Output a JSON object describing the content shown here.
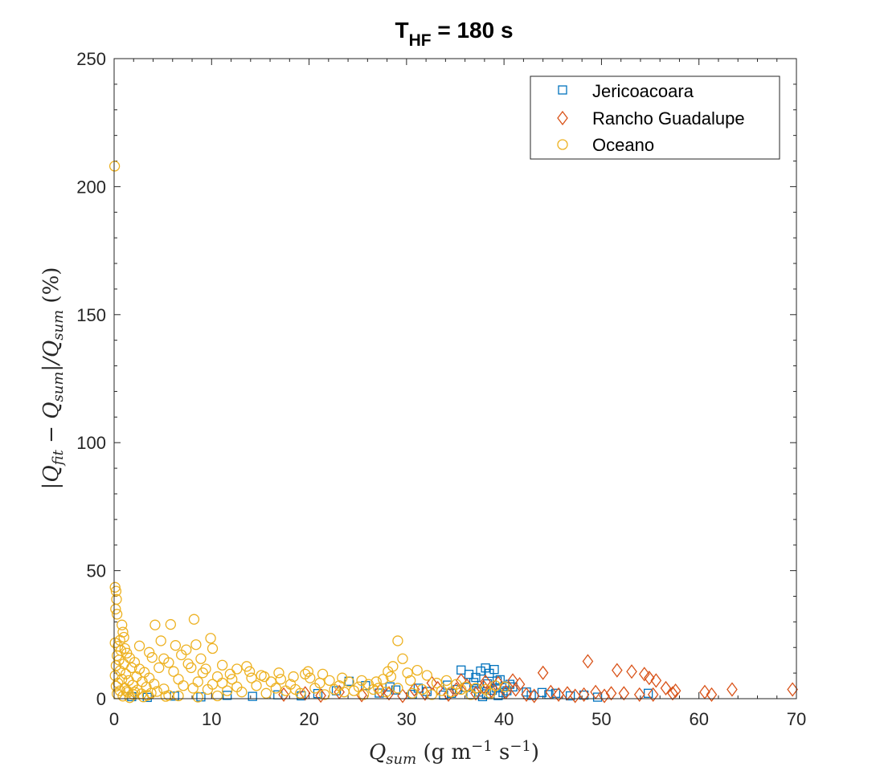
{
  "chart_data": {
    "type": "scatter",
    "title": {
      "main": "T",
      "sub": "HF",
      "rest": " = 180 s"
    },
    "xlabel": {
      "q": "Q",
      "sub": "sum",
      "rest": " (g m",
      "sup1": "−1",
      "mid": " s",
      "sup2": "−1",
      "end": ")"
    },
    "ylabel": {
      "p1": "|Q",
      "s1": "fit",
      "p2": " − Q",
      "s2": "sum",
      "p3": "|/Q",
      "s3": "sum",
      "p4": " (%)"
    },
    "xlim": [
      0,
      70
    ],
    "ylim": [
      0,
      250
    ],
    "x_ticks": [
      "0",
      "10",
      "20",
      "30",
      "40",
      "50",
      "60",
      "70"
    ],
    "y_ticks": [
      "0",
      "50",
      "100",
      "150",
      "200",
      "250"
    ],
    "legend_position": "top-right",
    "grid": false,
    "series": [
      {
        "name": "Jericoacoara",
        "marker": "square",
        "color": "#0072BD",
        "points": [
          [
            35.6,
            11.2
          ],
          [
            36.4,
            9.5
          ],
          [
            37.1,
            8.3
          ],
          [
            37.6,
            10.8
          ],
          [
            38.1,
            12.0
          ],
          [
            38.5,
            9.9
          ],
          [
            39.0,
            11.4
          ],
          [
            39.6,
            7.4
          ],
          [
            36.9,
            6.3
          ],
          [
            38.3,
            5.8
          ],
          [
            39.3,
            6.9
          ],
          [
            40.1,
            4.9
          ],
          [
            40.6,
            5.6
          ],
          [
            35.2,
            3.6
          ],
          [
            36.1,
            4.4
          ],
          [
            37.4,
            2.6
          ],
          [
            38.8,
            3.3
          ],
          [
            39.9,
            2.4
          ],
          [
            38.2,
            1.9
          ],
          [
            40.3,
            3.1
          ],
          [
            39.4,
            1.2
          ],
          [
            37.8,
            0.8
          ],
          [
            36.6,
            1.6
          ],
          [
            34.6,
            2.1
          ],
          [
            33.8,
            1.4
          ],
          [
            32.1,
            2.8
          ],
          [
            30.6,
            1.7
          ],
          [
            28.9,
            3.4
          ],
          [
            27.2,
            2.2
          ],
          [
            25.8,
            5.1
          ],
          [
            24.1,
            6.8
          ],
          [
            22.8,
            3.1
          ],
          [
            20.9,
            2.0
          ],
          [
            19.2,
            1.1
          ],
          [
            16.8,
            1.5
          ],
          [
            14.2,
            0.9
          ],
          [
            11.6,
            1.3
          ],
          [
            8.9,
            0.7
          ],
          [
            6.2,
            1.0
          ],
          [
            3.4,
            0.5
          ],
          [
            1.8,
            0.8
          ],
          [
            42.3,
            2.6
          ],
          [
            42.8,
            1.3
          ],
          [
            43.9,
            2.4
          ],
          [
            44.6,
            1.6
          ],
          [
            45.3,
            2.1
          ],
          [
            46.8,
            1.1
          ],
          [
            48.2,
            1.4
          ],
          [
            49.6,
            0.6
          ],
          [
            54.8,
            2.1
          ],
          [
            28.3,
            4.6
          ],
          [
            31.2,
            4.1
          ],
          [
            34.2,
            5.3
          ],
          [
            39.2,
            4.2
          ],
          [
            40.9,
            4.6
          ],
          [
            37.2,
            3.9
          ]
        ]
      },
      {
        "name": "Rancho Guadalupe",
        "marker": "diamond",
        "color": "#D95319",
        "points": [
          [
            17.4,
            1.6
          ],
          [
            19.6,
            2.1
          ],
          [
            21.2,
            1.2
          ],
          [
            23.1,
            2.6
          ],
          [
            25.4,
            1.4
          ],
          [
            27.3,
            3.1
          ],
          [
            28.2,
            2.1
          ],
          [
            29.6,
            1.1
          ],
          [
            30.8,
            3.6
          ],
          [
            31.9,
            2.0
          ],
          [
            33.2,
            4.1
          ],
          [
            34.3,
            1.6
          ],
          [
            35.1,
            3.6
          ],
          [
            36.2,
            5.1
          ],
          [
            37.1,
            2.1
          ],
          [
            37.9,
            4.6
          ],
          [
            38.7,
            3.1
          ],
          [
            39.4,
            6.1
          ],
          [
            40.2,
            2.6
          ],
          [
            40.9,
            7.1
          ],
          [
            41.6,
            5.6
          ],
          [
            41.2,
            3.6
          ],
          [
            42.3,
            1.6
          ],
          [
            43.1,
            1.1
          ],
          [
            44.0,
            10.1
          ],
          [
            44.8,
            2.6
          ],
          [
            45.6,
            1.6
          ],
          [
            46.5,
            2.1
          ],
          [
            47.3,
            1.1
          ],
          [
            48.2,
            1.6
          ],
          [
            48.6,
            14.6
          ],
          [
            49.4,
            2.6
          ],
          [
            50.3,
            1.1
          ],
          [
            51.0,
            2.1
          ],
          [
            51.6,
            11.1
          ],
          [
            52.3,
            2.1
          ],
          [
            53.1,
            10.6
          ],
          [
            53.9,
            1.6
          ],
          [
            54.4,
            9.6
          ],
          [
            54.9,
            8.1
          ],
          [
            55.3,
            1.6
          ],
          [
            55.6,
            7.1
          ],
          [
            56.6,
            4.1
          ],
          [
            57.3,
            2.1
          ],
          [
            57.6,
            3.1
          ],
          [
            60.6,
            2.6
          ],
          [
            61.3,
            1.6
          ],
          [
            63.4,
            3.6
          ],
          [
            69.6,
            3.6
          ],
          [
            32.6,
            6.1
          ],
          [
            35.6,
            7.1
          ],
          [
            38.1,
            6.6
          ]
        ]
      },
      {
        "name": "Oceano",
        "marker": "circle",
        "color": "#EDB120",
        "points": [
          [
            0.05,
            208
          ],
          [
            0.1,
            43.5
          ],
          [
            0.2,
            42.0
          ],
          [
            0.25,
            38.8
          ],
          [
            0.15,
            35.0
          ],
          [
            0.3,
            33.0
          ],
          [
            0.8,
            28.8
          ],
          [
            0.9,
            26.0
          ],
          [
            1.0,
            24.0
          ],
          [
            0.6,
            22.8
          ],
          [
            0.1,
            21.8
          ],
          [
            0.4,
            20.5
          ],
          [
            1.1,
            19.6
          ],
          [
            0.7,
            18.8
          ],
          [
            1.3,
            17.8
          ],
          [
            0.3,
            16.8
          ],
          [
            1.6,
            15.9
          ],
          [
            0.5,
            15.1
          ],
          [
            2.1,
            14.2
          ],
          [
            1.0,
            13.6
          ],
          [
            0.2,
            12.9
          ],
          [
            1.8,
            12.1
          ],
          [
            2.6,
            11.6
          ],
          [
            0.6,
            10.9
          ],
          [
            3.1,
            10.3
          ],
          [
            1.2,
            9.6
          ],
          [
            0.1,
            9.0
          ],
          [
            2.3,
            8.6
          ],
          [
            3.6,
            8.1
          ],
          [
            0.8,
            7.6
          ],
          [
            1.5,
            7.1
          ],
          [
            2.9,
            6.6
          ],
          [
            0.4,
            6.1
          ],
          [
            4.1,
            5.7
          ],
          [
            1.9,
            5.3
          ],
          [
            0.2,
            4.9
          ],
          [
            3.3,
            4.5
          ],
          [
            1.1,
            4.1
          ],
          [
            5.1,
            3.8
          ],
          [
            2.4,
            3.4
          ],
          [
            0.6,
            3.1
          ],
          [
            4.4,
            2.8
          ],
          [
            1.4,
            2.5
          ],
          [
            3.8,
            2.2
          ],
          [
            0.3,
            1.9
          ],
          [
            2.0,
            1.6
          ],
          [
            5.6,
            1.3
          ],
          [
            0.9,
            1.0
          ],
          [
            3.0,
            0.7
          ],
          [
            1.6,
            0.4
          ],
          [
            4.2,
            28.8
          ],
          [
            5.8,
            29.0
          ],
          [
            8.2,
            31.0
          ],
          [
            4.8,
            22.6
          ],
          [
            6.3,
            20.8
          ],
          [
            7.4,
            19.1
          ],
          [
            8.4,
            21.1
          ],
          [
            9.9,
            23.6
          ],
          [
            10.1,
            19.6
          ],
          [
            6.9,
            17.1
          ],
          [
            8.9,
            15.6
          ],
          [
            11.1,
            13.1
          ],
          [
            12.6,
            11.6
          ],
          [
            13.6,
            12.6
          ],
          [
            7.6,
            13.6
          ],
          [
            5.1,
            15.6
          ],
          [
            3.6,
            18.1
          ],
          [
            2.6,
            20.6
          ],
          [
            4.6,
            12.1
          ],
          [
            6.1,
            10.6
          ],
          [
            9.1,
            10.1
          ],
          [
            10.6,
            8.6
          ],
          [
            12.1,
            7.6
          ],
          [
            14.1,
            8.1
          ],
          [
            15.1,
            9.1
          ],
          [
            16.1,
            6.6
          ],
          [
            17.1,
            7.6
          ],
          [
            18.1,
            5.6
          ],
          [
            19.6,
            9.6
          ],
          [
            20.1,
            8.1
          ],
          [
            21.1,
            6.1
          ],
          [
            22.1,
            7.1
          ],
          [
            23.1,
            5.1
          ],
          [
            24.1,
            6.6
          ],
          [
            25.1,
            4.6
          ],
          [
            26.1,
            5.6
          ],
          [
            27.1,
            4.1
          ],
          [
            27.6,
            7.6
          ],
          [
            28.1,
            10.6
          ],
          [
            28.6,
            12.6
          ],
          [
            29.1,
            22.6
          ],
          [
            29.6,
            15.6
          ],
          [
            30.1,
            10.1
          ],
          [
            31.1,
            11.1
          ],
          [
            32.1,
            9.1
          ],
          [
            33.1,
            6.1
          ],
          [
            34.1,
            7.1
          ],
          [
            35.1,
            5.6
          ],
          [
            36.1,
            4.6
          ],
          [
            37.1,
            4.1
          ],
          [
            38.1,
            3.6
          ],
          [
            39.1,
            5.1
          ],
          [
            40.1,
            4.6
          ],
          [
            7.1,
            5.1
          ],
          [
            8.1,
            4.1
          ],
          [
            9.6,
            3.6
          ],
          [
            11.6,
            3.1
          ],
          [
            13.1,
            2.6
          ],
          [
            15.6,
            2.1
          ],
          [
            17.6,
            3.1
          ],
          [
            19.1,
            2.1
          ],
          [
            21.6,
            1.6
          ],
          [
            23.6,
            2.6
          ],
          [
            25.6,
            1.6
          ],
          [
            27.9,
            2.6
          ],
          [
            30.6,
            2.1
          ],
          [
            32.6,
            1.6
          ],
          [
            34.6,
            2.6
          ],
          [
            36.6,
            1.6
          ],
          [
            38.6,
            2.1
          ],
          [
            6.6,
            7.6
          ],
          [
            8.6,
            6.6
          ],
          [
            10.1,
            5.6
          ],
          [
            11.1,
            6.1
          ],
          [
            12.6,
            4.6
          ],
          [
            14.6,
            5.1
          ],
          [
            16.6,
            4.1
          ],
          [
            18.6,
            3.6
          ],
          [
            20.6,
            4.1
          ],
          [
            22.6,
            3.6
          ],
          [
            24.6,
            3.1
          ],
          [
            26.6,
            3.6
          ],
          [
            29.1,
            4.1
          ],
          [
            31.6,
            3.6
          ],
          [
            33.6,
            3.1
          ],
          [
            35.6,
            3.6
          ],
          [
            1.3,
            3.1
          ],
          [
            2.1,
            2.6
          ],
          [
            2.8,
            1.9
          ],
          [
            3.4,
            1.3
          ],
          [
            5.3,
            0.9
          ],
          [
            6.6,
            1.1
          ],
          [
            8.6,
            0.6
          ],
          [
            10.6,
            1.1
          ],
          [
            3.9,
            16.1
          ],
          [
            5.6,
            14.1
          ],
          [
            7.9,
            12.1
          ],
          [
            9.4,
            11.6
          ],
          [
            11.9,
            9.6
          ],
          [
            13.9,
            10.6
          ],
          [
            15.4,
            8.6
          ],
          [
            16.9,
            10.1
          ],
          [
            18.4,
            8.6
          ],
          [
            19.9,
            10.6
          ],
          [
            21.4,
            9.6
          ],
          [
            23.4,
            8.1
          ],
          [
            25.4,
            7.1
          ],
          [
            26.9,
            6.6
          ],
          [
            28.4,
            8.6
          ],
          [
            30.4,
            7.1
          ]
        ]
      }
    ]
  }
}
